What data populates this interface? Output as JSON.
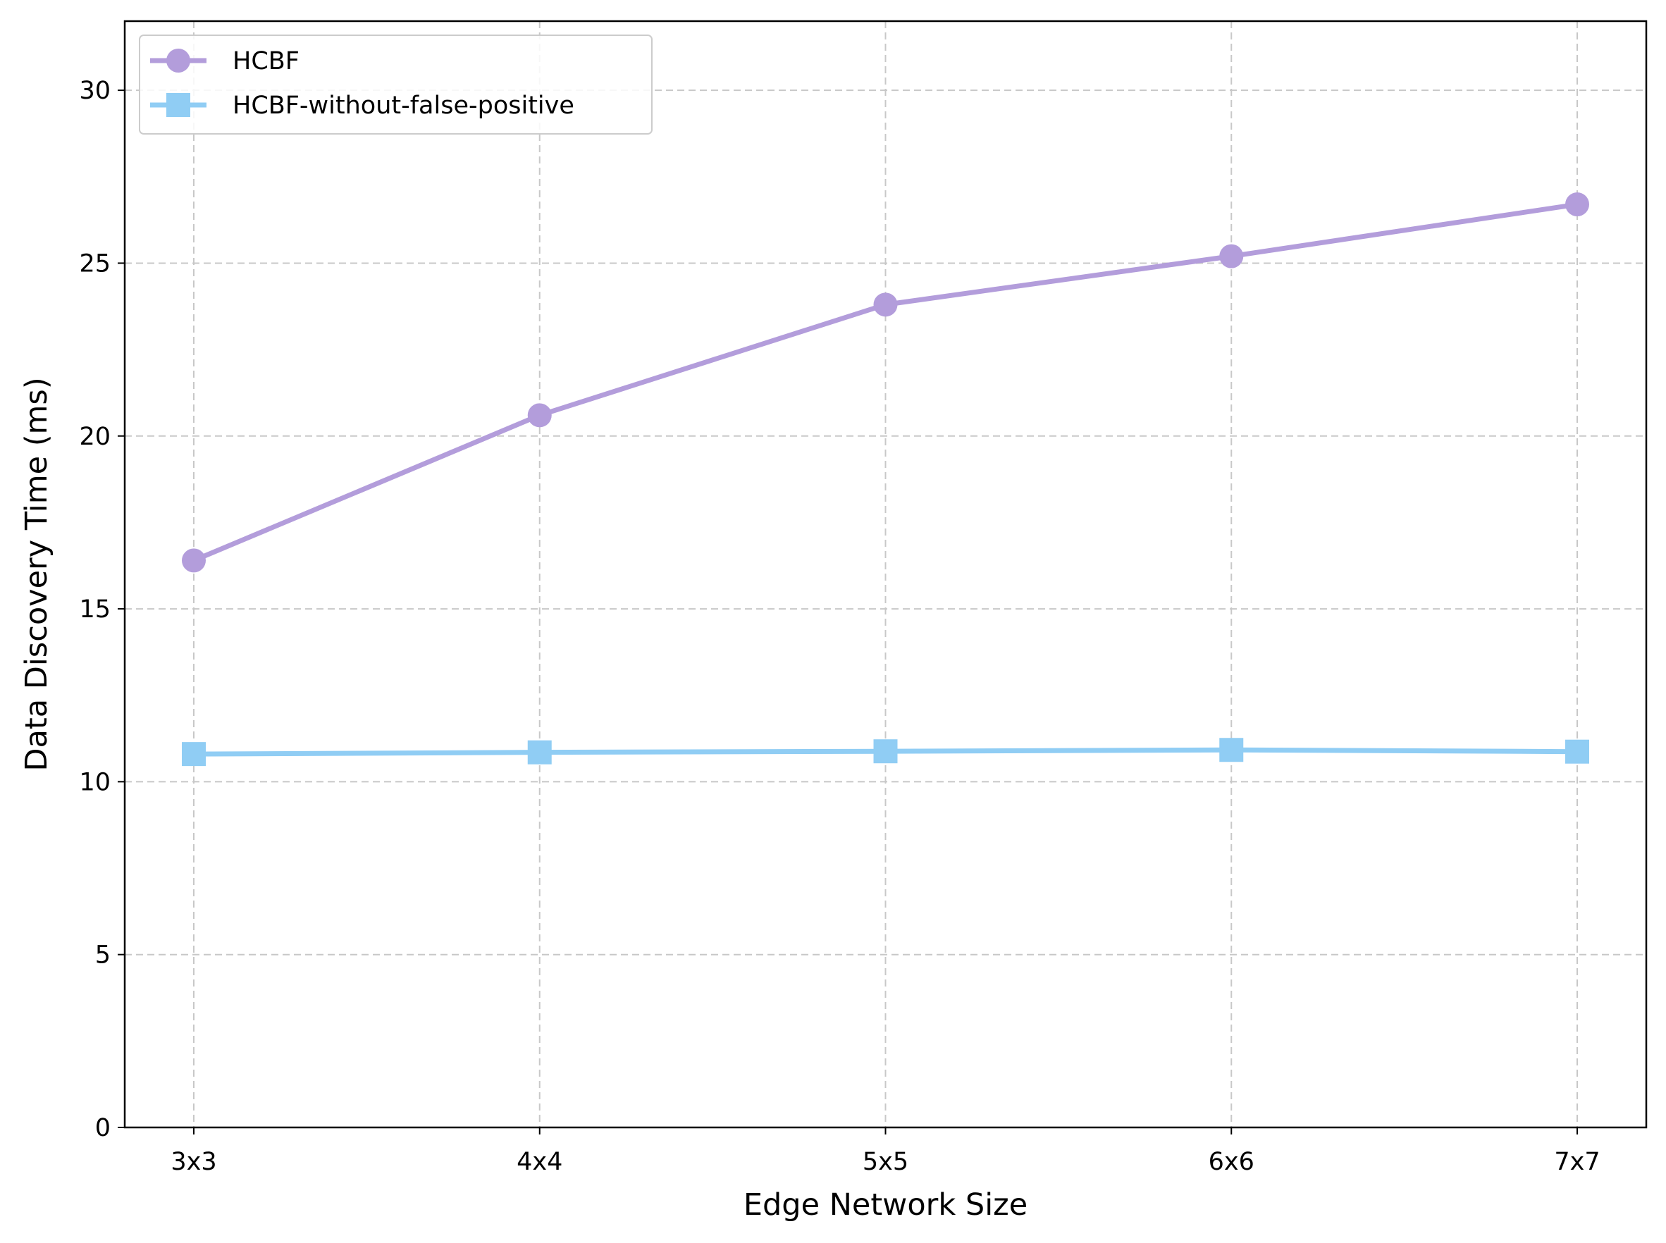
{
  "chart_data": {
    "type": "line",
    "categories": [
      "3x3",
      "4x4",
      "5x5",
      "6x6",
      "7x7"
    ],
    "series": [
      {
        "name": "HCBF",
        "values": [
          16.4,
          20.6,
          23.8,
          25.2,
          26.7
        ],
        "color": "#b39ddb",
        "marker": "circle"
      },
      {
        "name": "HCBF-without-false-positive",
        "values": [
          10.8,
          10.85,
          10.88,
          10.92,
          10.87
        ],
        "color": "#90cdf4",
        "marker": "square"
      }
    ],
    "title": "",
    "xlabel": "Edge Network Size",
    "ylabel": "Data Discovery Time (ms)",
    "ylim": [
      0,
      32
    ],
    "yticks": [
      0,
      5,
      10,
      15,
      20,
      25,
      30
    ],
    "grid": true,
    "legend_position": "upper-left"
  }
}
